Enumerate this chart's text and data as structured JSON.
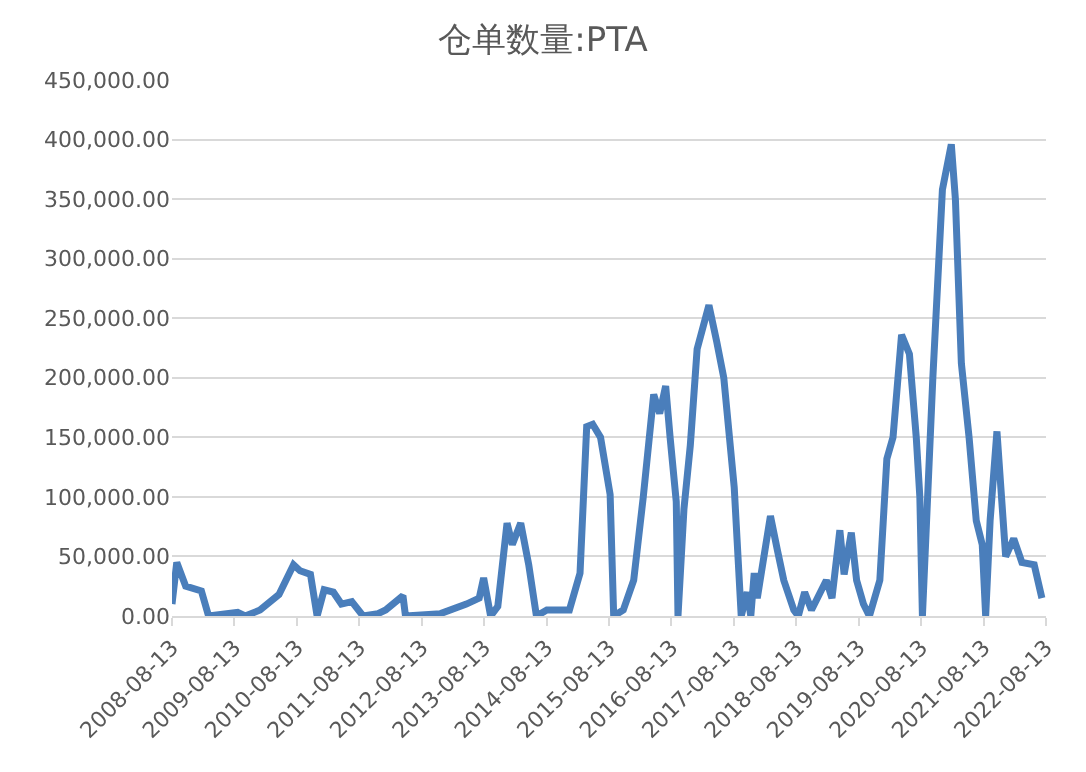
{
  "chart_data": {
    "type": "line",
    "title": "仓单数量:PTA",
    "x": [
      "2008-08-13",
      "2008-09-10",
      "2008-11-01",
      "2009-02-01",
      "2009-03-15",
      "2009-09-01",
      "2009-10-15",
      "2010-01-10",
      "2010-05-01",
      "2010-07-25",
      "2010-09-01",
      "2010-11-01",
      "2010-12-10",
      "2011-01-20",
      "2011-03-15",
      "2011-05-01",
      "2011-07-01",
      "2011-09-05",
      "2011-12-01",
      "2012-01-15",
      "2012-04-25",
      "2012-05-10",
      "2012-12-01",
      "2013-05-01",
      "2013-07-15",
      "2013-08-10",
      "2013-09-20",
      "2013-11-01",
      "2013-12-25",
      "2014-01-25",
      "2014-03-15",
      "2014-05-01",
      "2014-06-15",
      "2014-08-15",
      "2014-12-25",
      "2015-02-25",
      "2015-04-05",
      "2015-05-10",
      "2015-06-25",
      "2015-08-20",
      "2015-09-10",
      "2015-11-05",
      "2016-01-05",
      "2016-03-01",
      "2016-05-01",
      "2016-06-05",
      "2016-07-10",
      "2016-08-05",
      "2016-09-10",
      "2016-09-20",
      "2016-10-25",
      "2016-12-01",
      "2017-01-10",
      "2017-03-20",
      "2017-05-05",
      "2017-06-15",
      "2017-08-15",
      "2017-09-25",
      "2017-10-30",
      "2017-11-20",
      "2017-12-10",
      "2017-12-28",
      "2018-03-15",
      "2018-04-25",
      "2018-06-01",
      "2018-07-30",
      "2018-08-25",
      "2018-10-01",
      "2018-11-10",
      "2019-02-05",
      "2019-03-10",
      "2019-04-25",
      "2019-05-20",
      "2019-07-01",
      "2019-08-01",
      "2019-09-10",
      "2019-10-15",
      "2019-12-15",
      "2020-01-25",
      "2020-03-01",
      "2020-04-20",
      "2020-06-05",
      "2020-07-15",
      "2020-08-05",
      "2020-08-20",
      "2020-10-20",
      "2020-12-15",
      "2021-02-05",
      "2021-03-01",
      "2021-04-05",
      "2021-05-20",
      "2021-07-01",
      "2021-08-05",
      "2021-08-25",
      "2021-09-20",
      "2021-10-30",
      "2021-12-20",
      "2022-02-05",
      "2022-03-25",
      "2022-06-05",
      "2022-07-20"
    ],
    "series": [
      {
        "color": "#4a7ebb",
        "values": [
          10000,
          45000,
          25000,
          21000,
          0,
          3000,
          0,
          5000,
          18000,
          43000,
          38000,
          35000,
          0,
          22000,
          20000,
          10000,
          12000,
          0,
          2000,
          5000,
          17000,
          0,
          2000,
          10000,
          15000,
          32000,
          0,
          8000,
          78000,
          60000,
          78000,
          43000,
          0,
          5000,
          5000,
          36000,
          159000,
          161000,
          150000,
          102000,
          0,
          5000,
          30000,
          100000,
          186000,
          170000,
          193000,
          150000,
          96000,
          0,
          90000,
          143000,
          224000,
          261000,
          230000,
          200000,
          108000,
          0,
          20000,
          0,
          36000,
          15000,
          84000,
          55000,
          30000,
          5000,
          0,
          20000,
          5000,
          30000,
          15000,
          72000,
          35000,
          70000,
          30000,
          10000,
          0,
          30000,
          132000,
          150000,
          236000,
          220000,
          150000,
          100000,
          0,
          200000,
          358000,
          396000,
          350000,
          212000,
          150000,
          80000,
          60000,
          0,
          80000,
          155000,
          50000,
          65000,
          45000,
          43000,
          15000
        ]
      }
    ],
    "xlim": [
      "2008-08-13",
      "2022-08-13"
    ],
    "xticks": [
      "2008-08-13",
      "2009-08-13",
      "2010-08-13",
      "2011-08-13",
      "2012-08-13",
      "2013-08-13",
      "2014-08-13",
      "2015-08-13",
      "2016-08-13",
      "2017-08-13",
      "2018-08-13",
      "2019-08-13",
      "2020-08-13",
      "2021-08-13",
      "2022-08-13"
    ],
    "ylim": [
      0,
      450000
    ],
    "yticks": [
      {
        "value": 0,
        "label": "0.00"
      },
      {
        "value": 50000,
        "label": "50,000.00"
      },
      {
        "value": 100000,
        "label": "100,000.00"
      },
      {
        "value": 150000,
        "label": "150,000.00"
      },
      {
        "value": 200000,
        "label": "200,000.00"
      },
      {
        "value": 250000,
        "label": "250,000.00"
      },
      {
        "value": 300000,
        "label": "300,000.00"
      },
      {
        "value": 350000,
        "label": "350,000.00"
      },
      {
        "value": 400000,
        "label": "400,000.00"
      },
      {
        "value": 450000,
        "label": "450,000.00"
      }
    ],
    "grid": "y"
  }
}
